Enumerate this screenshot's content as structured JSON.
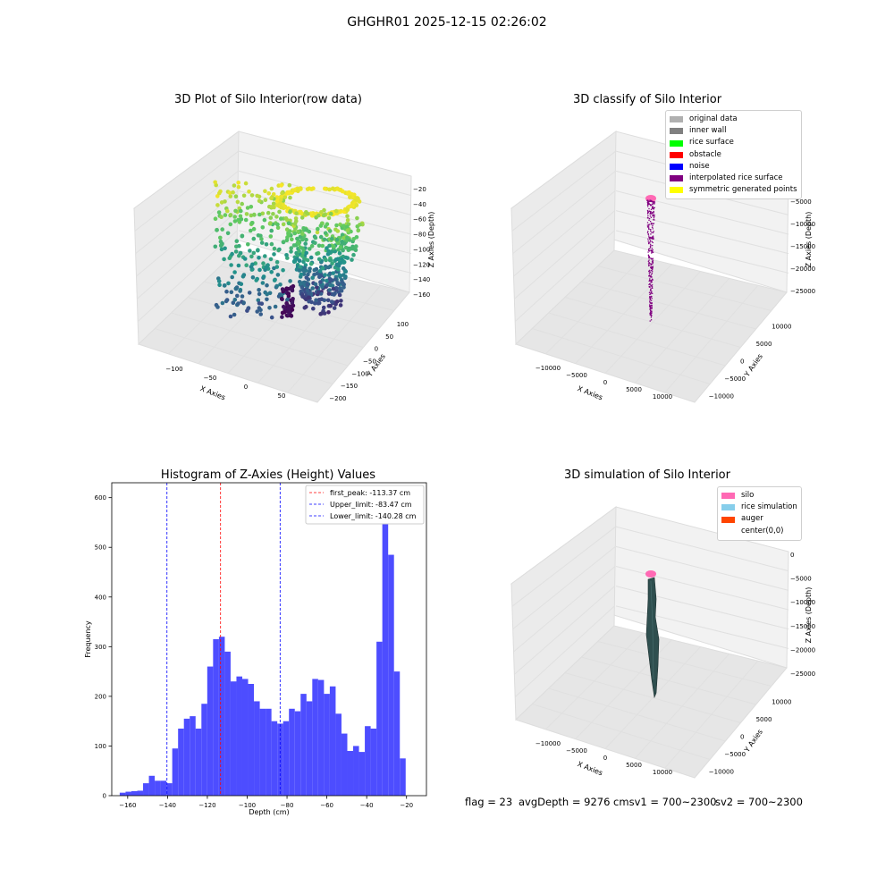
{
  "suptitle": "GHGHR01 2025-12-15 02:26:02",
  "footer": {
    "flag": "flag = 23",
    "avgdepth": "avgDepth = 9276 cmsv1 = 700~2300",
    "sv2": "sv2 = 700~2300"
  },
  "colors": {
    "hist_bar": "#4d4dff",
    "first_peak_line": "#ff0000",
    "limit_line": "#0000ff",
    "pane_fill": "#f2f2f2",
    "grid": "#e0e0e0",
    "silo": "#ff69b4",
    "auger": "#2f4f4f",
    "interpolated": "#800080"
  },
  "chart_data": [
    {
      "type": "scatter",
      "title": "3D Plot of Silo Interior(row data)",
      "xlabel": "X Axies",
      "ylabel": "Y Axies",
      "zlabel": "Z Axies (Depth)",
      "x_ticks": [
        "−100",
        "−50",
        "0",
        "50"
      ],
      "y_ticks": [
        "100",
        "50",
        "0",
        "−50",
        "−100",
        "−150",
        "−200"
      ],
      "z_ticks": [
        "−20",
        "−40",
        "−60",
        "−80",
        "−100",
        "−120",
        "−140",
        "−160"
      ],
      "colormap": "viridis",
      "zlim": [
        -165,
        -15
      ]
    },
    {
      "type": "scatter",
      "title": "3D classify of Silo Interior",
      "xlabel": "X Axies",
      "ylabel": "Y Axies",
      "zlabel": "Z Axies (Depth)",
      "x_ticks": [
        "−10000",
        "−5000",
        "0",
        "5000",
        "10000"
      ],
      "y_ticks": [
        "10000",
        "5000",
        "0",
        "−5000",
        "−10000"
      ],
      "z_ticks": [
        "0",
        "−5000",
        "−10000",
        "−15000",
        "−20000",
        "−25000"
      ],
      "legend": [
        {
          "label": "original data",
          "color": "#b0b0b0"
        },
        {
          "label": "inner wall",
          "color": "#808080"
        },
        {
          "label": "rice surface",
          "color": "#00ff00"
        },
        {
          "label": "obstacle",
          "color": "#ff0000"
        },
        {
          "label": "noise",
          "color": "#0000ff"
        },
        {
          "label": "interpolated rice surface",
          "color": "#800080"
        },
        {
          "label": "symmetric generated points",
          "color": "#ffff00"
        }
      ]
    },
    {
      "type": "bar",
      "title": "Histogram of Z-Axies (Height) Values",
      "xlabel": "Depth (cm)",
      "ylabel": "Frequency",
      "xlim": [
        -168,
        -10
      ],
      "ylim": [
        0,
        630
      ],
      "x_ticks": [
        -160,
        -140,
        -120,
        -100,
        -80,
        -60,
        -40,
        -20
      ],
      "x_tick_labels": [
        "−160",
        "−140",
        "−120",
        "−100",
        "−80",
        "−60",
        "−40",
        "−20"
      ],
      "y_ticks": [
        0,
        100,
        200,
        300,
        400,
        500,
        600
      ],
      "y_tick_labels": [
        "0",
        "100",
        "200",
        "300",
        "400",
        "500",
        "600"
      ],
      "bin_start": -164.0,
      "bin_width": 2.93,
      "values": [
        6,
        8,
        9,
        10,
        25,
        40,
        30,
        30,
        25,
        95,
        135,
        155,
        160,
        135,
        185,
        260,
        315,
        320,
        290,
        230,
        240,
        235,
        225,
        190,
        175,
        175,
        150,
        145,
        150,
        175,
        170,
        205,
        190,
        235,
        233,
        205,
        220,
        165,
        125,
        90,
        100,
        88,
        140,
        135,
        310,
        600,
        485,
        250,
        75
      ],
      "vlines": [
        {
          "x": -113.37,
          "label": "first_peak: -113.37 cm",
          "color": "#ff0000"
        },
        {
          "x": -83.47,
          "label": "Upper_limit: -83.47 cm",
          "color": "#0000ff"
        },
        {
          "x": -140.28,
          "label": "Lower_limit: -140.28 cm",
          "color": "#0000ff"
        }
      ],
      "legend_position": "top-right"
    },
    {
      "type": "area",
      "title": "3D simulation of Silo Interior",
      "xlabel": "X Axies",
      "ylabel": "Y Axies",
      "zlabel": "Z Axies (Depth)",
      "x_ticks": [
        "−10000",
        "−5000",
        "0",
        "5000",
        "10000"
      ],
      "y_ticks": [
        "10000",
        "5000",
        "0",
        "−5000",
        "−10000"
      ],
      "z_ticks": [
        "0",
        "−5000",
        "−10000",
        "−15000",
        "−20000",
        "−25000"
      ],
      "legend": [
        {
          "label": "silo",
          "color": "#ff69b4"
        },
        {
          "label": "rice simulation",
          "color": "#87ceeb"
        },
        {
          "label": "auger",
          "color": "#ff4500"
        },
        {
          "label": "center(0,0)",
          "color": ""
        }
      ]
    }
  ]
}
